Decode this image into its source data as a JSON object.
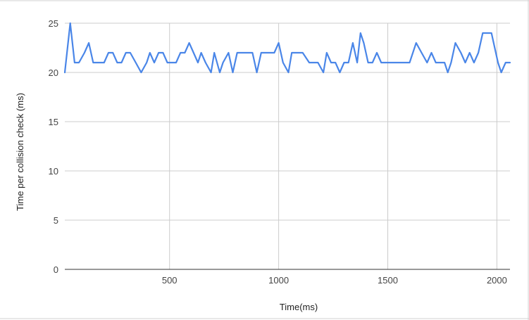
{
  "chart_data": {
    "type": "line",
    "xlabel": "Time(ms)",
    "ylabel": "Time per collision check (ms)",
    "xlim": [
      20,
      2060
    ],
    "ylim": [
      0,
      25
    ],
    "x_ticks": [
      500,
      1000,
      1500,
      2000
    ],
    "y_ticks": [
      0,
      5,
      10,
      15,
      20,
      25
    ],
    "grid": true,
    "line_color": "#4a86e8",
    "series": [
      {
        "x": [
          20,
          45,
          65,
          85,
          110,
          130,
          150,
          170,
          200,
          220,
          240,
          260,
          280,
          300,
          320,
          345,
          370,
          395,
          410,
          430,
          450,
          470,
          490,
          510,
          530,
          550,
          570,
          590,
          610,
          630,
          645,
          665,
          690,
          705,
          730,
          745,
          770,
          790,
          810,
          830,
          850,
          870,
          880,
          900,
          920,
          940,
          960,
          980,
          1000,
          1020,
          1045,
          1060,
          1090,
          1110,
          1140,
          1160,
          1180,
          1205,
          1220,
          1240,
          1260,
          1280,
          1300,
          1320,
          1340,
          1360,
          1375,
          1390,
          1410,
          1430,
          1450,
          1470,
          1490,
          1505,
          1525,
          1540,
          1560,
          1580,
          1600,
          1630,
          1655,
          1680,
          1700,
          1720,
          1740,
          1760,
          1775,
          1790,
          1810,
          1835,
          1855,
          1875,
          1895,
          1915,
          1935,
          1955,
          1975,
          2005,
          2020,
          2040,
          2060
        ],
        "values": [
          20,
          25,
          21,
          21,
          22,
          23,
          21,
          21,
          21,
          22,
          22,
          21,
          21,
          22,
          22,
          21,
          20,
          21,
          22,
          21,
          22,
          22,
          21,
          21,
          21,
          22,
          22,
          23,
          22,
          21,
          22,
          21,
          20,
          22,
          20,
          21,
          22,
          20,
          22,
          22,
          22,
          22,
          22,
          20,
          22,
          22,
          22,
          22,
          23,
          21,
          20,
          22,
          22,
          22,
          21,
          21,
          21,
          20,
          22,
          21,
          21,
          20,
          21,
          21,
          23,
          21,
          24,
          23,
          21,
          21,
          22,
          21,
          21,
          21,
          21,
          21,
          21,
          21,
          21,
          23,
          22,
          21,
          22,
          21,
          21,
          21,
          20,
          21,
          23,
          22,
          21,
          22,
          21,
          22,
          24,
          24,
          24,
          21,
          20,
          21,
          21
        ]
      }
    ]
  }
}
